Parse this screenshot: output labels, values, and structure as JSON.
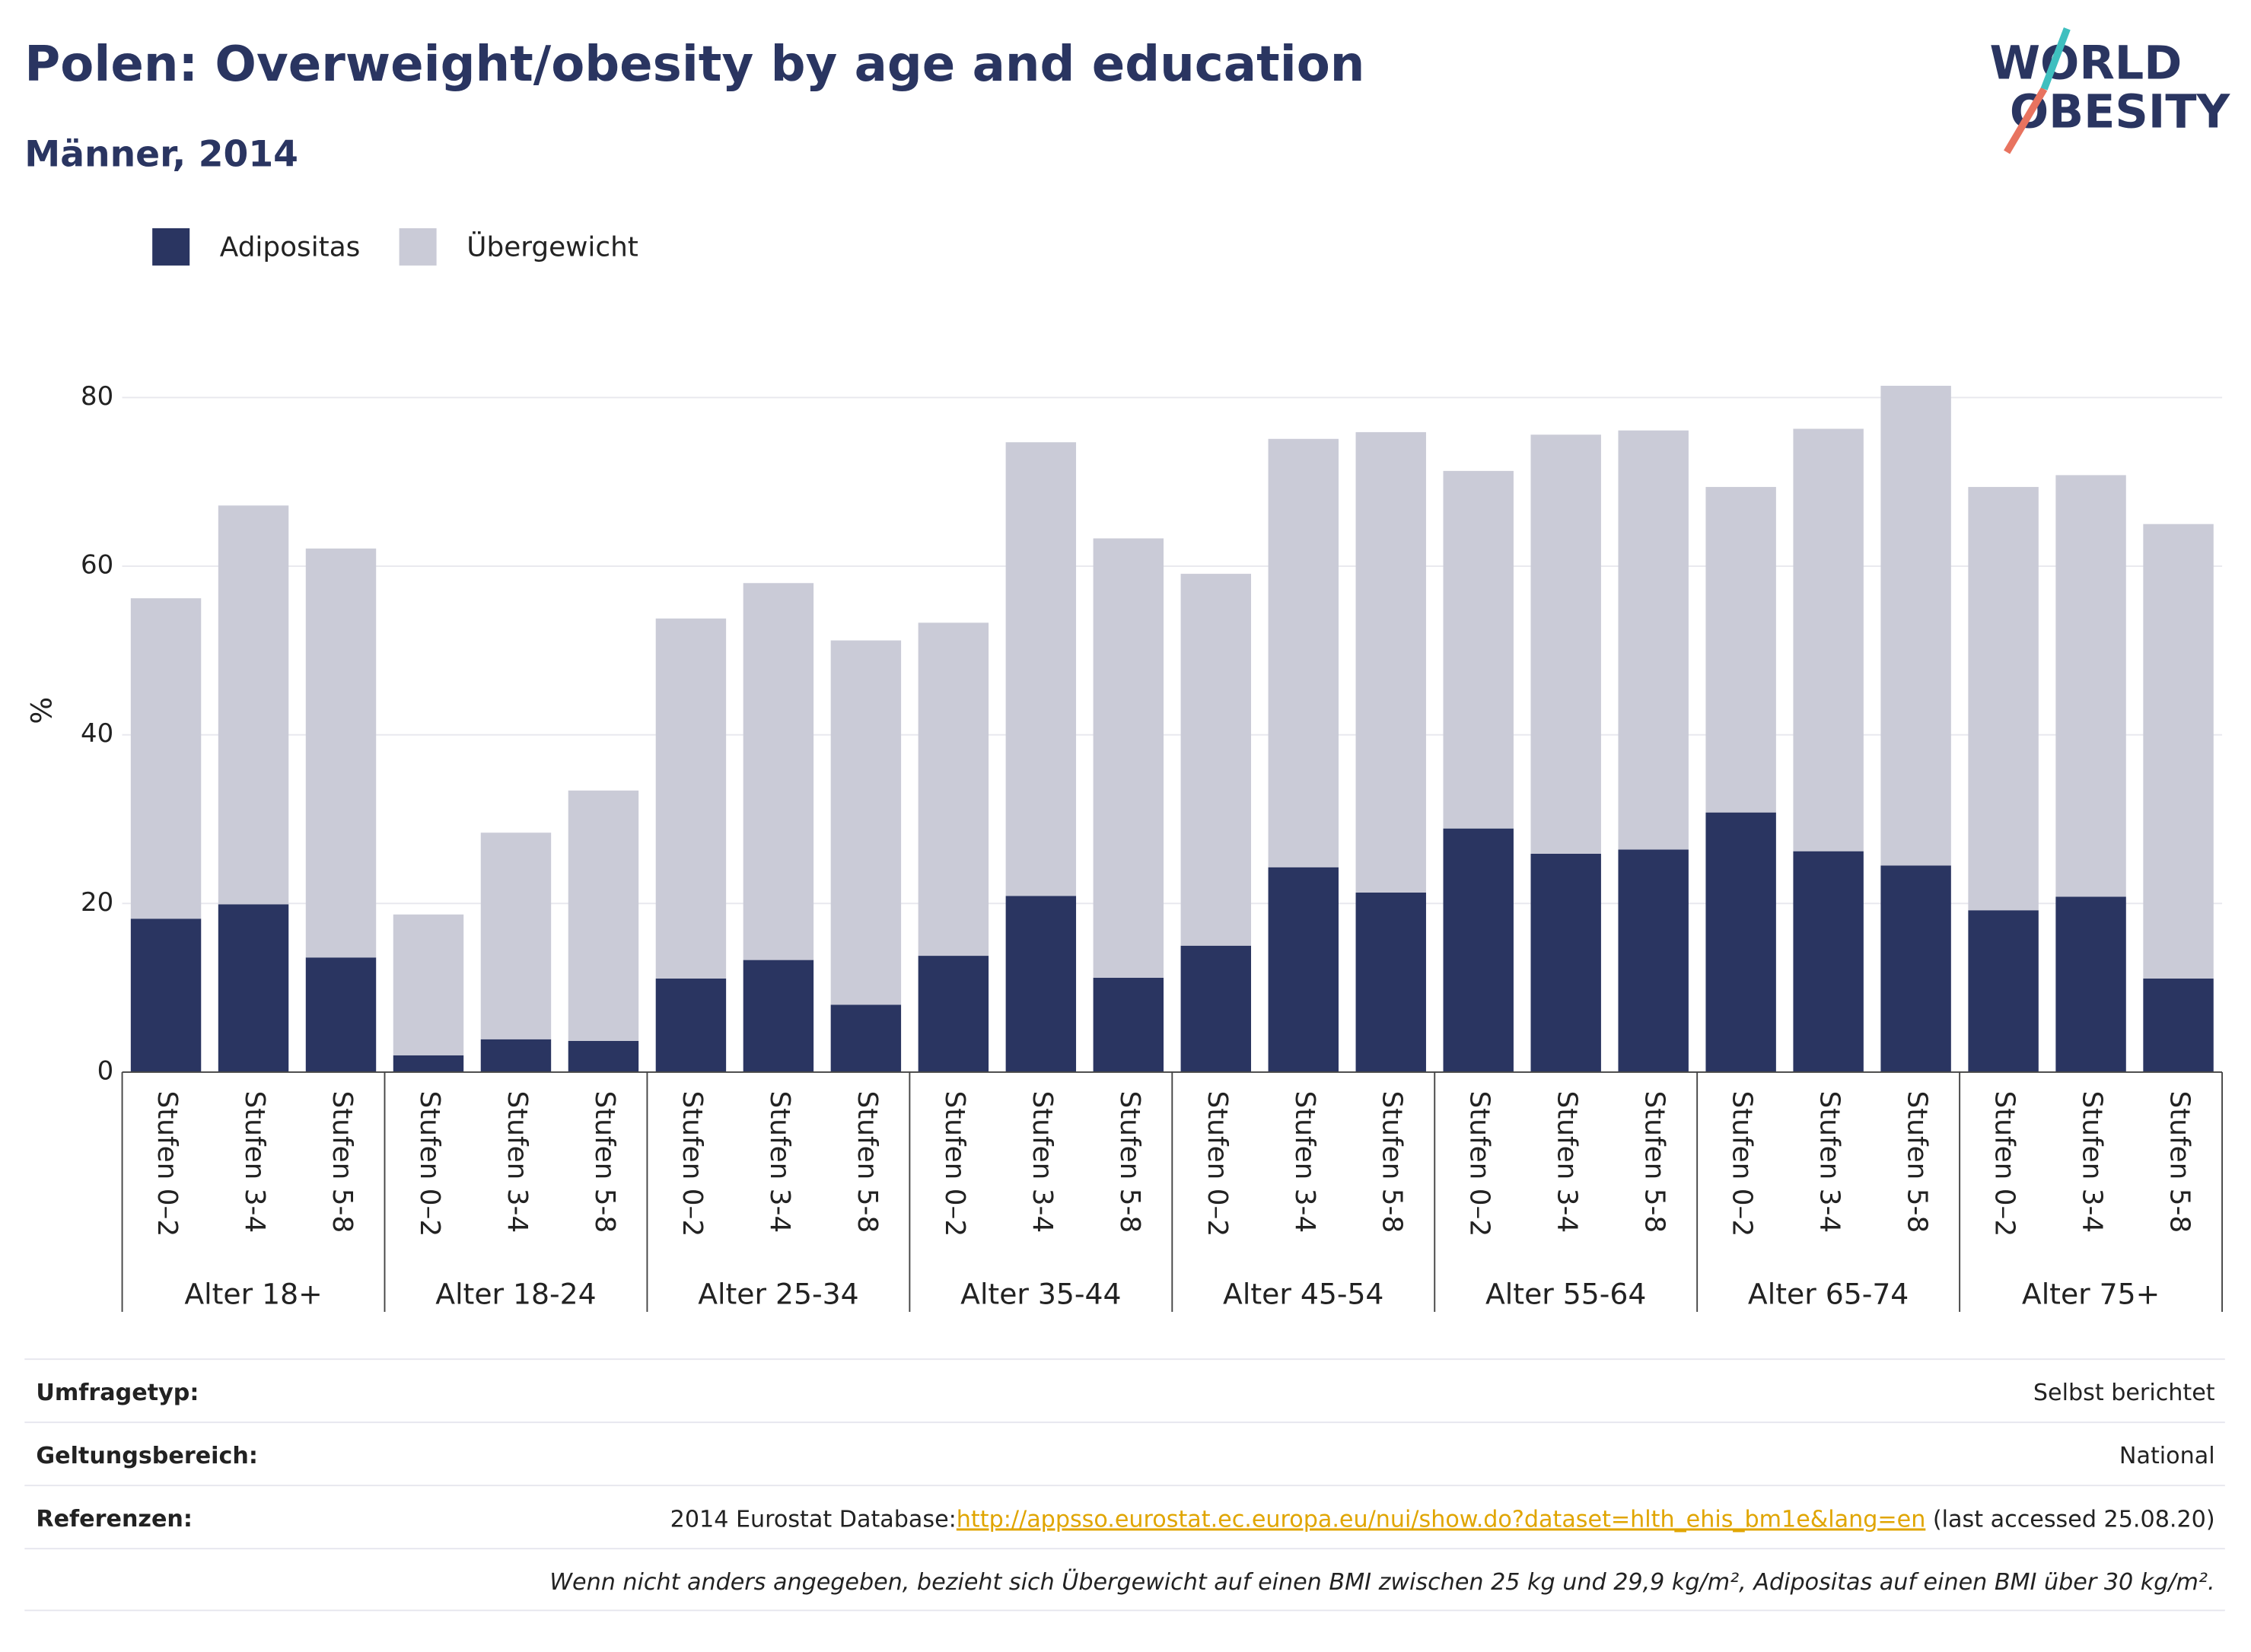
{
  "chart_data": {
    "type": "stacked_bar",
    "title": "Polen: Overweight/obesity by age and education",
    "subtitle": "Männer, 2014",
    "logo": [
      "WORLD",
      "OBESITY"
    ],
    "y_label": "%",
    "categories": [
      "Stufen 0–2",
      "Stufen 3-4",
      "Stufen 5-8",
      "Stufen 0–2",
      "Stufen 3-4",
      "Stufen 5-8",
      "Stufen 0–2",
      "Stufen 3-4",
      "Stufen 5-8",
      "Stufen 0–2",
      "Stufen 3-4",
      "Stufen 5-8",
      "Stufen 0–2",
      "Stufen 3-4",
      "Stufen 5-8",
      "Stufen 0–2",
      "Stufen 3-4",
      "Stufen 5-8",
      "Stufen 0–2",
      "Stufen 3-4",
      "Stufen 5-8",
      "Stufen 0–2",
      "Stufen 3-4",
      "Stufen 5-8"
    ],
    "groups": [
      "Alter 18+",
      "Alter 18-24",
      "Alter 25-34",
      "Alter 35-44",
      "Alter 45-54",
      "Alter 55-64",
      "Alter 65-74",
      "Alter 75+"
    ],
    "series": [
      {
        "name": "Adipositas",
        "color": "#2a3561",
        "values": [
          18.2,
          19.9,
          13.6,
          2.0,
          3.9,
          3.7,
          11.1,
          13.3,
          8.0,
          13.8,
          20.9,
          11.2,
          15.0,
          24.3,
          21.3,
          28.9,
          25.9,
          26.4,
          30.8,
          26.2,
          24.5,
          19.2,
          20.8,
          11.1
        ]
      },
      {
        "name": "Übergewicht",
        "color": "#cacbd7",
        "values": [
          38.0,
          47.3,
          48.5,
          16.7,
          24.5,
          29.7,
          42.7,
          44.7,
          43.2,
          39.5,
          53.8,
          52.1,
          44.1,
          50.8,
          54.6,
          42.4,
          49.7,
          49.7,
          38.6,
          50.1,
          56.9,
          50.2,
          50.0,
          53.9
        ]
      }
    ],
    "ylim": [
      0,
      80
    ],
    "yticks": [
      0,
      20,
      40,
      60,
      80
    ],
    "grid": true,
    "legend": "top-left"
  },
  "footer": {
    "rows": [
      {
        "label": "Umfragetyp:",
        "value": "Selbst berichtet"
      },
      {
        "label": "Geltungsbereich:",
        "value": "National"
      },
      {
        "label": "Referenzen:",
        "value": "2014 Eurostat Database:",
        "link": "http://appsso.eurostat.ec.europa.eu/nui/show.do?dataset=hlth_ehis_bm1e&lang=en",
        "suffix": " (last accessed 25.08.20)"
      }
    ],
    "note": "Wenn nicht anders angegeben, bezieht sich Übergewicht auf einen BMI zwischen 25 kg und 29,9 kg/m², Adipositas auf einen BMI über 30 kg/m²."
  }
}
